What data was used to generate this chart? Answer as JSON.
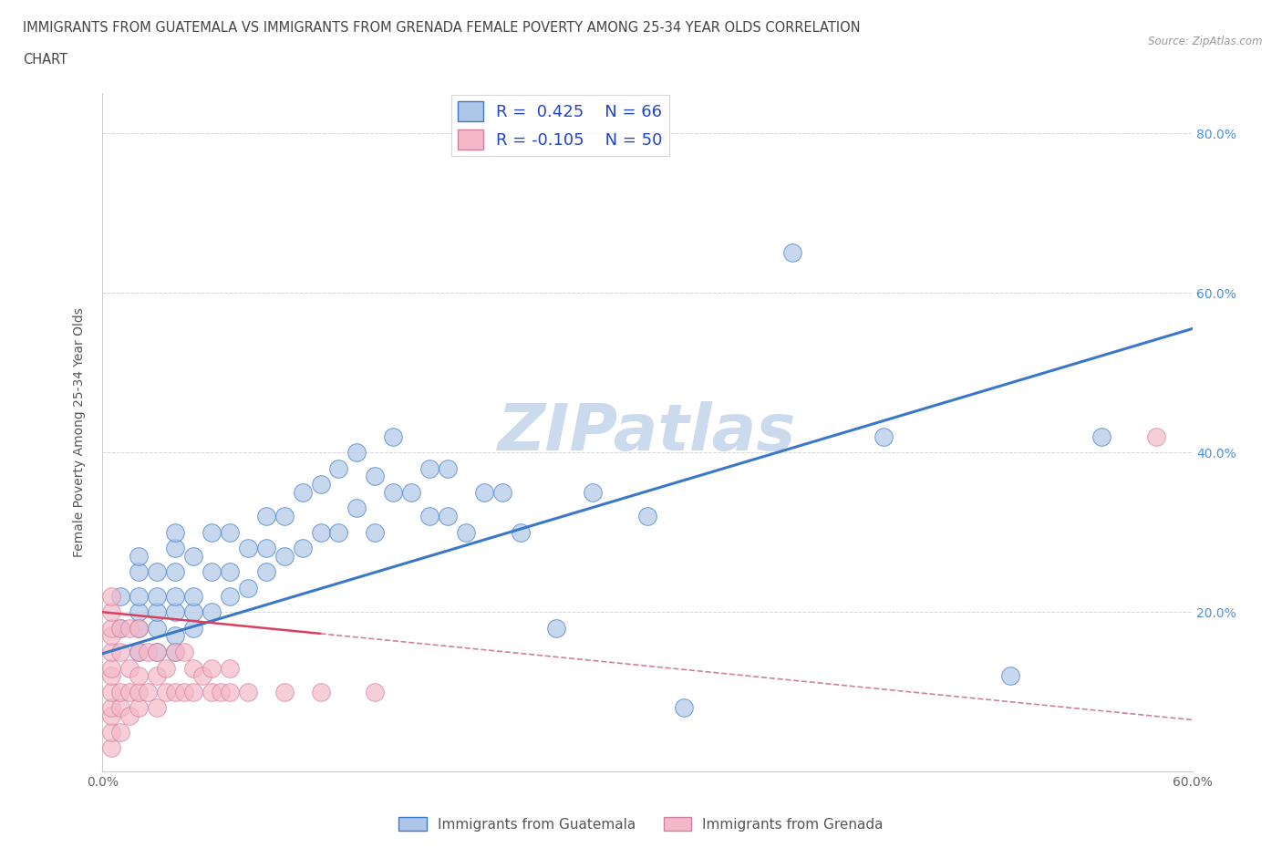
{
  "title_line1": "IMMIGRANTS FROM GUATEMALA VS IMMIGRANTS FROM GRENADA FEMALE POVERTY AMONG 25-34 YEAR OLDS CORRELATION",
  "title_line2": "CHART",
  "source_text": "Source: ZipAtlas.com",
  "ylabel": "Female Poverty Among 25-34 Year Olds",
  "xlim": [
    0,
    0.6
  ],
  "ylim": [
    0,
    0.85
  ],
  "R_guatemala": 0.425,
  "N_guatemala": 66,
  "R_grenada": -0.105,
  "N_grenada": 50,
  "color_guatemala": "#aec6e8",
  "color_grenada": "#f5b8c8",
  "line_color_guatemala": "#3a78c9",
  "line_color_grenada": "#d94060",
  "legend_label_guatemala": "Immigrants from Guatemala",
  "legend_label_grenada": "Immigrants from Grenada",
  "watermark": "ZIPatlas",
  "watermark_color": "#ccdaee",
  "guatemala_trend_x": [
    0.0,
    0.6
  ],
  "guatemala_trend_y": [
    0.148,
    0.555
  ],
  "grenada_trend_x": [
    0.0,
    0.2
  ],
  "grenada_trend_y": [
    0.195,
    0.155
  ],
  "guatemala_x": [
    0.01,
    0.01,
    0.02,
    0.02,
    0.02,
    0.02,
    0.02,
    0.02,
    0.03,
    0.03,
    0.03,
    0.03,
    0.03,
    0.04,
    0.04,
    0.04,
    0.04,
    0.04,
    0.04,
    0.04,
    0.05,
    0.05,
    0.05,
    0.05,
    0.06,
    0.06,
    0.06,
    0.07,
    0.07,
    0.07,
    0.08,
    0.08,
    0.09,
    0.09,
    0.09,
    0.1,
    0.1,
    0.11,
    0.11,
    0.12,
    0.12,
    0.13,
    0.13,
    0.14,
    0.14,
    0.15,
    0.15,
    0.16,
    0.16,
    0.17,
    0.18,
    0.18,
    0.19,
    0.19,
    0.2,
    0.21,
    0.22,
    0.23,
    0.25,
    0.27,
    0.3,
    0.32,
    0.38,
    0.43,
    0.5,
    0.55
  ],
  "guatemala_y": [
    0.18,
    0.22,
    0.15,
    0.18,
    0.2,
    0.22,
    0.25,
    0.27,
    0.15,
    0.18,
    0.2,
    0.22,
    0.25,
    0.15,
    0.17,
    0.2,
    0.22,
    0.25,
    0.28,
    0.3,
    0.18,
    0.2,
    0.22,
    0.27,
    0.2,
    0.25,
    0.3,
    0.22,
    0.25,
    0.3,
    0.23,
    0.28,
    0.25,
    0.28,
    0.32,
    0.27,
    0.32,
    0.28,
    0.35,
    0.3,
    0.36,
    0.3,
    0.38,
    0.33,
    0.4,
    0.3,
    0.37,
    0.35,
    0.42,
    0.35,
    0.32,
    0.38,
    0.32,
    0.38,
    0.3,
    0.35,
    0.35,
    0.3,
    0.18,
    0.35,
    0.32,
    0.08,
    0.65,
    0.42,
    0.12,
    0.42
  ],
  "grenada_x": [
    0.005,
    0.005,
    0.005,
    0.005,
    0.005,
    0.005,
    0.005,
    0.005,
    0.005,
    0.005,
    0.005,
    0.005,
    0.01,
    0.01,
    0.01,
    0.01,
    0.01,
    0.015,
    0.015,
    0.015,
    0.015,
    0.02,
    0.02,
    0.02,
    0.02,
    0.02,
    0.025,
    0.025,
    0.03,
    0.03,
    0.03,
    0.035,
    0.035,
    0.04,
    0.04,
    0.045,
    0.045,
    0.05,
    0.05,
    0.055,
    0.06,
    0.06,
    0.065,
    0.07,
    0.07,
    0.08,
    0.1,
    0.12,
    0.15,
    0.58
  ],
  "grenada_y": [
    0.03,
    0.05,
    0.07,
    0.08,
    0.1,
    0.12,
    0.13,
    0.15,
    0.17,
    0.18,
    0.2,
    0.22,
    0.05,
    0.08,
    0.1,
    0.15,
    0.18,
    0.07,
    0.1,
    0.13,
    0.18,
    0.08,
    0.1,
    0.12,
    0.15,
    0.18,
    0.1,
    0.15,
    0.08,
    0.12,
    0.15,
    0.1,
    0.13,
    0.1,
    0.15,
    0.1,
    0.15,
    0.1,
    0.13,
    0.12,
    0.1,
    0.13,
    0.1,
    0.1,
    0.13,
    0.1,
    0.1,
    0.1,
    0.1,
    0.42
  ]
}
